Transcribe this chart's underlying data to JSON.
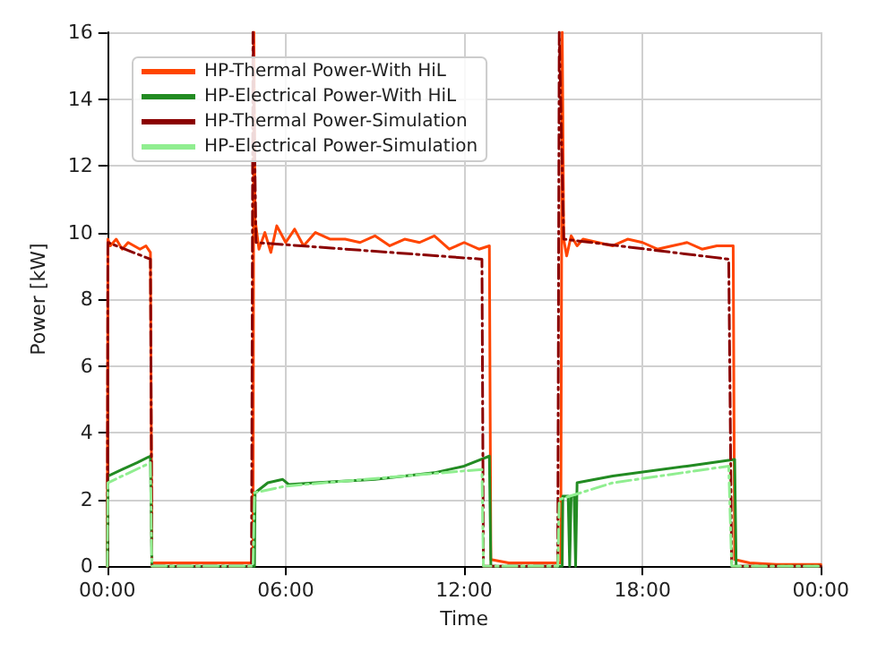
{
  "chart_data": {
    "type": "line",
    "xlabel": "Time",
    "ylabel": "Power [kW]",
    "xlim": [
      0,
      24
    ],
    "xticks": [
      {
        "value": 0,
        "label": "00:00"
      },
      {
        "value": 6,
        "label": "06:00"
      },
      {
        "value": 12,
        "label": "12:00"
      },
      {
        "value": 18,
        "label": "18:00"
      },
      {
        "value": 24,
        "label": "00:00"
      }
    ],
    "ylim": [
      0,
      16
    ],
    "yticks": [
      0,
      2,
      4,
      6,
      8,
      10,
      12,
      14,
      16
    ],
    "grid": true,
    "legend": "top left",
    "marker": "none",
    "series": [
      {
        "name": "HP-Thermal Power-With HiL",
        "color": "#ff4500",
        "line_style": "solid",
        "x": [
          0,
          0.02,
          0.1,
          0.3,
          0.5,
          0.7,
          0.9,
          1.1,
          1.3,
          1.45,
          1.5,
          2,
          3,
          4,
          4.9,
          4.93,
          4.97,
          5.1,
          5.3,
          5.5,
          5.7,
          6,
          6.3,
          6.6,
          7,
          7.5,
          8,
          8.5,
          9,
          9.5,
          10,
          10.5,
          11,
          11.5,
          12,
          12.5,
          12.85,
          12.9,
          13.5,
          14.5,
          15.25,
          15.3,
          15.35,
          15.45,
          15.6,
          15.8,
          16,
          16.5,
          17,
          17.5,
          18,
          18.5,
          19,
          19.5,
          20,
          20.5,
          21.05,
          21.1,
          21.6,
          22.5,
          24
        ],
        "values": [
          0,
          9.8,
          9.6,
          9.8,
          9.5,
          9.7,
          9.6,
          9.5,
          9.6,
          9.4,
          0.1,
          0.1,
          0.1,
          0.1,
          0.1,
          16,
          10.4,
          9.5,
          10,
          9.4,
          10.2,
          9.7,
          10.1,
          9.6,
          10,
          9.8,
          9.8,
          9.7,
          9.9,
          9.6,
          9.8,
          9.7,
          9.9,
          9.5,
          9.7,
          9.5,
          9.6,
          0.2,
          0.1,
          0.1,
          0.1,
          16,
          9.8,
          9.3,
          9.9,
          9.6,
          9.8,
          9.7,
          9.6,
          9.8,
          9.7,
          9.5,
          9.6,
          9.7,
          9.5,
          9.6,
          9.6,
          0.2,
          0.1,
          0.05,
          0.05
        ]
      },
      {
        "name": "HP-Electrical Power-With HiL",
        "color": "#228b22",
        "line_style": "solid",
        "x": [
          0,
          0.02,
          0.5,
          1,
          1.45,
          1.5,
          3,
          4.95,
          4.97,
          5.4,
          5.9,
          6.1,
          7,
          9,
          11,
          12,
          12.85,
          12.9,
          14,
          15.3,
          15.32,
          15.5,
          15.55,
          15.6,
          15.7,
          15.75,
          15.8,
          17,
          19.5,
          21.1,
          21.15,
          24
        ],
        "values": [
          0,
          2.7,
          2.9,
          3.1,
          3.3,
          0,
          0,
          0,
          2.2,
          2.5,
          2.6,
          2.45,
          2.5,
          2.6,
          2.8,
          3.0,
          3.3,
          0,
          0,
          0,
          2.1,
          2.1,
          0,
          2.1,
          2.1,
          0,
          2.5,
          2.7,
          3.0,
          3.2,
          0,
          0
        ]
      },
      {
        "name": "HP-Thermal Power-Simulation",
        "color": "#8b0000",
        "line_style": "dashed",
        "x": [
          0,
          0.02,
          1.45,
          1.5,
          4.85,
          4.9,
          5.0,
          12.6,
          12.65,
          15.15,
          15.2,
          15.35,
          20.9,
          21.0,
          24
        ],
        "values": [
          0,
          9.7,
          9.2,
          0,
          0,
          16,
          9.7,
          9.2,
          0,
          0,
          16,
          9.8,
          9.2,
          0,
          0
        ]
      },
      {
        "name": "HP-Electrical Power-Simulation",
        "color": "#90ee90",
        "line_style": "dashed",
        "x": [
          0,
          0.02,
          1.45,
          1.5,
          4.9,
          4.95,
          6,
          12.6,
          12.65,
          15.15,
          15.2,
          17,
          20.9,
          21.0,
          24
        ],
        "values": [
          0,
          2.5,
          3.1,
          0,
          0,
          2.2,
          2.4,
          2.9,
          0,
          0,
          2.0,
          2.5,
          3.0,
          0,
          0
        ]
      }
    ]
  }
}
